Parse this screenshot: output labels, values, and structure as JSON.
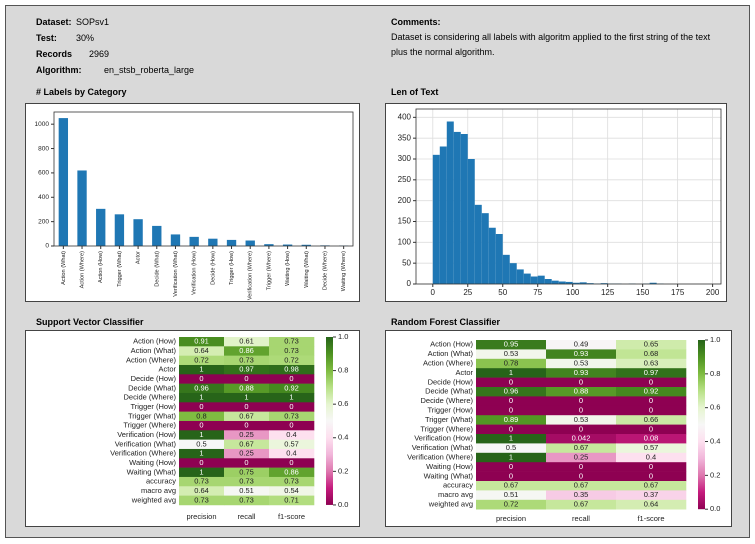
{
  "header": {
    "fields": [
      {
        "label": "Dataset:",
        "value": "SOPsv1"
      },
      {
        "label": "Test:",
        "value": "30%"
      },
      {
        "label": "Records",
        "value": "2969"
      },
      {
        "label": "Algorithm:",
        "value": "en_stsb_roberta_large"
      }
    ],
    "comments_label": "Comments:",
    "comments": "Dataset is considering all labels with algoritm applied to the first string of the text plus the normal algorithm."
  },
  "chart_data": [
    {
      "type": "bar",
      "title": "# Labels by Category",
      "categories": [
        "Action (What)",
        "Action (Where)",
        "Action (How)",
        "Trigger (What)",
        "Actor",
        "Decide (What)",
        "Verification (What)",
        "Verification (How)",
        "Decide (How)",
        "Trigger (How)",
        "Verification (Where)",
        "Trigger (Where)",
        "Waiting (How)",
        "Waiting (What)",
        "Decide (Where)",
        "Waiting (Where)"
      ],
      "values": [
        1050,
        620,
        305,
        260,
        220,
        165,
        95,
        75,
        60,
        50,
        45,
        15,
        12,
        10,
        5,
        3
      ],
      "color": "#1f77b4",
      "ylim": [
        0,
        1100
      ],
      "yticks": [
        0,
        200,
        400,
        600,
        800,
        1000
      ]
    },
    {
      "type": "histogram",
      "title": "Len of Text",
      "bins": [
        0,
        5,
        10,
        15,
        20,
        25,
        30,
        35,
        40,
        45,
        50,
        55,
        60,
        65,
        70,
        75,
        80,
        85,
        90,
        95,
        100,
        105,
        110,
        115,
        120,
        125,
        130,
        135,
        140,
        145,
        150,
        155,
        160,
        165,
        170
      ],
      "values": [
        310,
        330,
        390,
        365,
        360,
        300,
        190,
        170,
        135,
        120,
        70,
        50,
        35,
        25,
        18,
        20,
        12,
        8,
        6,
        5,
        3,
        4,
        2,
        1,
        2,
        1,
        1,
        0,
        1,
        0,
        1,
        3,
        1,
        0
      ],
      "color": "#1f77b4",
      "xlim": [
        -12,
        206
      ],
      "xticks": [
        0,
        25,
        50,
        75,
        100,
        125,
        150,
        175,
        200
      ],
      "ylim": [
        0,
        420
      ],
      "yticks": [
        0,
        50,
        100,
        150,
        200,
        250,
        300,
        350,
        400
      ],
      "grid": true
    },
    {
      "type": "heatmap",
      "title": "Support Vector Classifier",
      "x": [
        "precision",
        "recall",
        "f1-score"
      ],
      "y": [
        "Action (How)",
        "Action (What)",
        "Action (Where)",
        "Actor",
        "Decide (How)",
        "Decide (What)",
        "Decide (Where)",
        "Trigger (How)",
        "Trigger (What)",
        "Trigger (Where)",
        "Verification (How)",
        "Verification (What)",
        "Verification (Where)",
        "Waiting (How)",
        "Waiting (What)",
        "accuracy",
        "macro avg",
        "weighted avg"
      ],
      "values": [
        [
          0.91,
          0.61,
          0.73
        ],
        [
          0.64,
          0.86,
          0.73
        ],
        [
          0.72,
          0.73,
          0.72
        ],
        [
          1,
          0.97,
          0.98
        ],
        [
          0,
          0,
          0
        ],
        [
          0.96,
          0.88,
          0.92
        ],
        [
          1,
          1,
          1
        ],
        [
          0,
          0,
          0
        ],
        [
          0.8,
          0.67,
          0.73
        ],
        [
          0,
          0,
          0
        ],
        [
          1,
          0.25,
          0.4
        ],
        [
          0.5,
          0.67,
          0.57
        ],
        [
          1,
          0.25,
          0.4
        ],
        [
          0,
          0,
          0
        ],
        [
          1,
          0.75,
          0.86
        ],
        [
          0.73,
          0.73,
          0.73
        ],
        [
          0.64,
          0.51,
          0.54
        ],
        [
          0.73,
          0.73,
          0.71
        ]
      ],
      "colormap": "PiYG",
      "zlim": [
        0,
        1
      ],
      "zticks": [
        {
          "value": 0,
          "label": "0.0"
        },
        0.2,
        0.4,
        0.6,
        0.8,
        {
          "value": 1,
          "label": "1.0"
        }
      ]
    },
    {
      "type": "heatmap",
      "title": "Random Forest Classifier",
      "x": [
        "precision",
        "recall",
        "f1-score"
      ],
      "y": [
        "Action (How)",
        "Action (What)",
        "Action (Where)",
        "Actor",
        "Decide (How)",
        "Decide (What)",
        "Decide (Where)",
        "Trigger (How)",
        "Trigger (What)",
        "Trigger (Where)",
        "Verification (How)",
        "Verification (What)",
        "Verification (Where)",
        "Waiting (How)",
        "Waiting (What)",
        "accuracy",
        "macro avg",
        "weighted avg"
      ],
      "values": [
        [
          0.95,
          0.49,
          0.65
        ],
        [
          0.53,
          0.93,
          0.68
        ],
        [
          0.78,
          0.53,
          0.63
        ],
        [
          1,
          0.93,
          0.97
        ],
        [
          0,
          0,
          0
        ],
        [
          0.96,
          0.88,
          0.92
        ],
        [
          0,
          0,
          0
        ],
        [
          0,
          0,
          0
        ],
        [
          0.89,
          0.53,
          0.66
        ],
        [
          0,
          0,
          0
        ],
        [
          1,
          0.042,
          0.08
        ],
        [
          0.5,
          0.67,
          0.57
        ],
        [
          1,
          0.25,
          0.4
        ],
        [
          0,
          0,
          0
        ],
        [
          0,
          0,
          0
        ],
        [
          0.67,
          0.67,
          0.67
        ],
        [
          0.51,
          0.35,
          0.37
        ],
        [
          0.72,
          0.67,
          0.64
        ]
      ],
      "colormap": "PiYG",
      "zlim": [
        0,
        1
      ],
      "zticks": [
        {
          "value": 0,
          "label": "0.0"
        },
        0.2,
        0.4,
        0.6,
        0.8,
        {
          "value": 1,
          "label": "1.0"
        }
      ]
    }
  ]
}
